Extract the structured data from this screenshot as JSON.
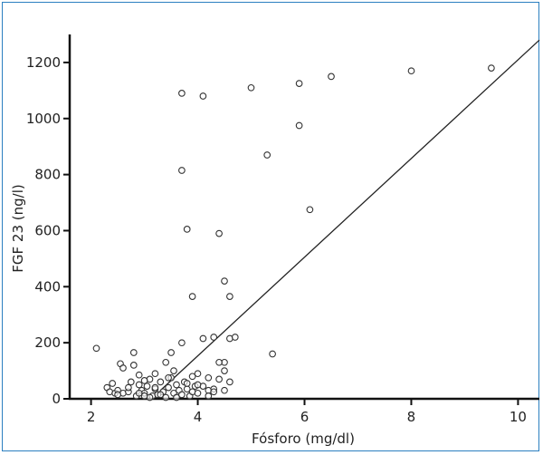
{
  "chart_data": {
    "type": "scatter",
    "xlabel": "Fósforo (mg/dl)",
    "ylabel": "FGF 23 (ng/l)",
    "xlim": [
      1.6,
      10.4
    ],
    "ylim": [
      0,
      1300
    ],
    "xticks": [
      2,
      4,
      6,
      8,
      10
    ],
    "yticks": [
      0,
      200,
      400,
      600,
      800,
      1000,
      1200
    ],
    "x_tick_labels": [
      "2",
      "4",
      "6",
      "8",
      "10"
    ],
    "y_tick_labels": [
      "0",
      "200",
      "400",
      "600",
      "800",
      "1000",
      "1200"
    ],
    "grid": false,
    "colors": {
      "marker": "#333333",
      "line": "#222222",
      "frame": "#2b7fc0"
    },
    "points": [
      [
        2.1,
        180
      ],
      [
        2.3,
        40
      ],
      [
        2.35,
        25
      ],
      [
        2.4,
        55
      ],
      [
        2.45,
        20
      ],
      [
        2.5,
        30
      ],
      [
        2.55,
        125
      ],
      [
        2.6,
        110
      ],
      [
        2.6,
        20
      ],
      [
        2.7,
        25
      ],
      [
        2.75,
        60
      ],
      [
        2.8,
        165
      ],
      [
        2.8,
        120
      ],
      [
        2.85,
        10
      ],
      [
        2.9,
        50
      ],
      [
        2.95,
        30
      ],
      [
        3.0,
        20
      ],
      [
        3.05,
        45
      ],
      [
        3.1,
        70
      ],
      [
        3.15,
        10
      ],
      [
        3.2,
        90
      ],
      [
        3.2,
        35
      ],
      [
        3.25,
        15
      ],
      [
        3.3,
        60
      ],
      [
        3.35,
        25
      ],
      [
        3.4,
        5
      ],
      [
        3.45,
        40
      ],
      [
        3.5,
        165
      ],
      [
        3.5,
        75
      ],
      [
        3.55,
        20
      ],
      [
        3.6,
        50
      ],
      [
        3.65,
        30
      ],
      [
        3.7,
        15
      ],
      [
        3.75,
        60
      ],
      [
        3.8,
        35
      ],
      [
        3.85,
        10
      ],
      [
        3.9,
        25
      ],
      [
        3.95,
        45
      ],
      [
        3.0,
        65
      ],
      [
        3.1,
        5
      ],
      [
        3.3,
        15
      ],
      [
        3.6,
        5
      ],
      [
        2.9,
        85
      ],
      [
        2.5,
        15
      ],
      [
        2.7,
        40
      ],
      [
        3.55,
        100
      ],
      [
        3.8,
        55
      ],
      [
        3.7,
        200
      ],
      [
        3.7,
        1090
      ],
      [
        4.1,
        1080
      ],
      [
        5.0,
        1110
      ],
      [
        5.9,
        1125
      ],
      [
        6.5,
        1150
      ],
      [
        8.0,
        1170
      ],
      [
        9.5,
        1180
      ],
      [
        3.7,
        815
      ],
      [
        3.8,
        605
      ],
      [
        3.9,
        365
      ],
      [
        4.4,
        590
      ],
      [
        4.5,
        420
      ],
      [
        4.6,
        365
      ],
      [
        5.3,
        870
      ],
      [
        5.9,
        975
      ],
      [
        6.1,
        675
      ],
      [
        4.3,
        220
      ],
      [
        4.6,
        215
      ],
      [
        4.7,
        220
      ],
      [
        4.1,
        215
      ],
      [
        4.5,
        130
      ],
      [
        4.5,
        100
      ],
      [
        4.0,
        90
      ],
      [
        4.2,
        75
      ],
      [
        4.4,
        130
      ],
      [
        4.4,
        70
      ],
      [
        4.2,
        30
      ],
      [
        4.5,
        30
      ],
      [
        4.1,
        45
      ],
      [
        5.4,
        160
      ],
      [
        4.0,
        20
      ],
      [
        4.2,
        10
      ],
      [
        4.3,
        35
      ],
      [
        3.4,
        130
      ],
      [
        3.2,
        40
      ],
      [
        2.9,
        20
      ],
      [
        3.0,
        10
      ],
      [
        3.45,
        75
      ],
      [
        3.9,
        80
      ],
      [
        4.0,
        50
      ],
      [
        4.3,
        25
      ],
      [
        4.6,
        60
      ]
    ],
    "regression": {
      "x": [
        3.3,
        10.4
      ],
      "y": [
        30,
        1280
      ]
    }
  }
}
